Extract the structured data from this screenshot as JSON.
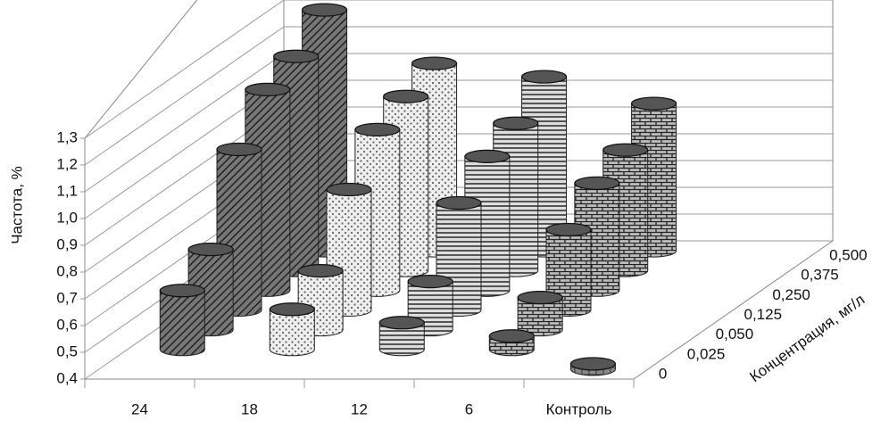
{
  "chart_data": {
    "type": "bar3d",
    "categories": [
      "24",
      "18",
      "12",
      "6",
      "Контроль"
    ],
    "series": [
      {
        "name": "0",
        "values": [
          null,
          null,
          null,
          null,
          0.42
        ]
      },
      {
        "name": "0,025",
        "values": [
          0.62,
          0.55,
          0.5,
          0.45,
          null
        ]
      },
      {
        "name": "0,050",
        "values": [
          0.7,
          0.62,
          0.58,
          0.52,
          null
        ]
      },
      {
        "name": "0,125",
        "values": [
          1.0,
          0.85,
          0.8,
          0.7,
          null
        ]
      },
      {
        "name": "0,250",
        "values": [
          1.15,
          1.0,
          0.9,
          0.8,
          null
        ]
      },
      {
        "name": "0,375",
        "values": [
          1.2,
          1.05,
          0.95,
          0.85,
          null
        ]
      },
      {
        "name": "0,500",
        "values": [
          1.3,
          1.1,
          1.05,
          0.95,
          null
        ]
      }
    ],
    "ylabel": "Частота, %",
    "zlabel": "Концентрация, мг/л",
    "ylim": [
      0.4,
      1.3
    ],
    "yticks": [
      {
        "value": 0.4,
        "label": "0,4"
      },
      {
        "value": 0.5,
        "label": "0,5"
      },
      {
        "value": 0.6,
        "label": "0,6"
      },
      {
        "value": 0.7,
        "label": "0,7"
      },
      {
        "value": 0.8,
        "label": "0,8"
      },
      {
        "value": 0.9,
        "label": "0,9"
      },
      {
        "value": 1.0,
        "label": "1,0"
      },
      {
        "value": 1.1,
        "label": "1,1"
      },
      {
        "value": 1.2,
        "label": "1,2"
      },
      {
        "value": 1.3,
        "label": "1,3"
      }
    ],
    "grid": true
  }
}
